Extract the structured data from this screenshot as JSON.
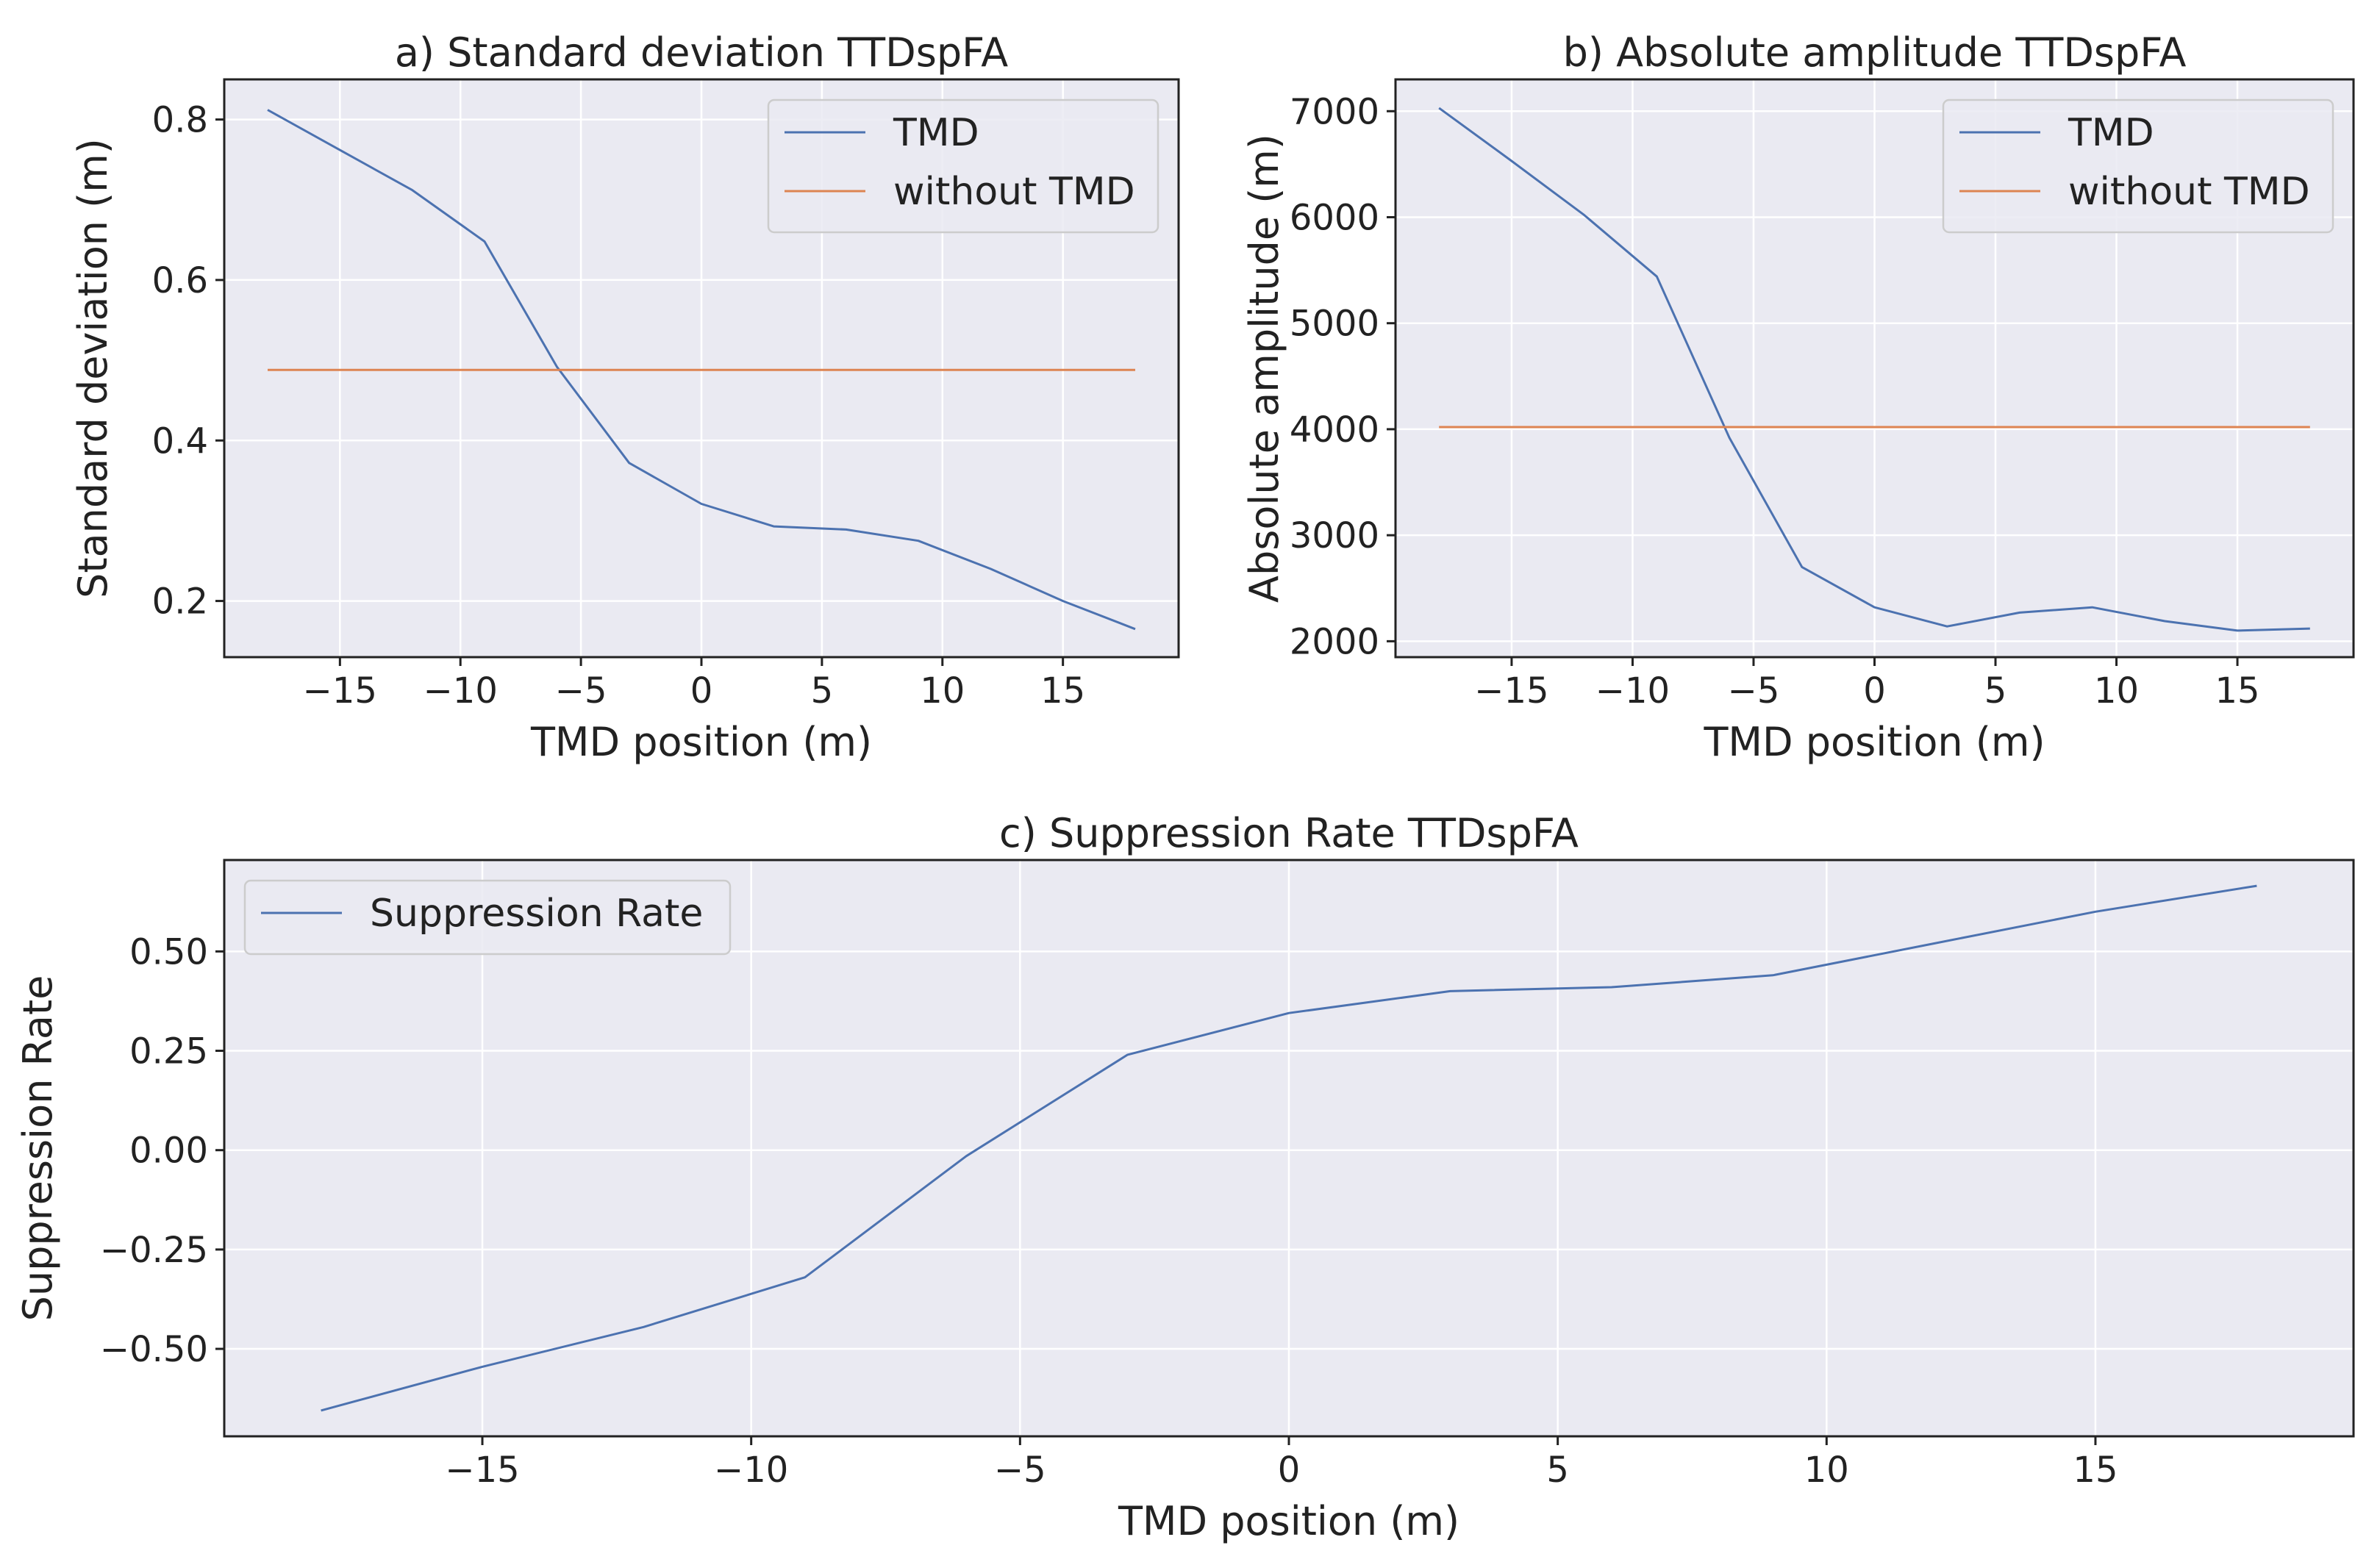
{
  "chart_data": [
    {
      "type": "line",
      "title": "a) Standard deviation TTDspFA",
      "xlabel": "TMD position (m)",
      "ylabel": "Standard deviation (m)",
      "xlim": [
        -19.8,
        19.8
      ],
      "ylim": [
        0.13,
        0.85
      ],
      "xticks": [
        -15,
        -10,
        -5,
        0,
        5,
        10,
        15
      ],
      "xtick_labels": [
        "−15",
        "−10",
        "−5",
        "0",
        "5",
        "10",
        "15"
      ],
      "yticks": [
        0.2,
        0.4,
        0.6,
        0.8
      ],
      "ytick_labels": [
        "0.2",
        "0.4",
        "0.6",
        "0.8"
      ],
      "grid": true,
      "legend": "top-right",
      "x": [
        -18,
        -15,
        -12,
        -9,
        -6,
        -3,
        0,
        3,
        6,
        9,
        12,
        15,
        18
      ],
      "series": [
        {
          "name": "TMD",
          "color": "#4c72b0",
          "values": [
            0.812,
            0.762,
            0.712,
            0.648,
            0.492,
            0.372,
            0.321,
            0.293,
            0.289,
            0.275,
            0.24,
            0.2,
            0.165
          ]
        },
        {
          "name": "without TMD",
          "color": "#dd8452",
          "values": [
            0.488,
            0.488,
            0.488,
            0.488,
            0.488,
            0.488,
            0.488,
            0.488,
            0.488,
            0.488,
            0.488,
            0.488,
            0.488
          ]
        }
      ]
    },
    {
      "type": "line",
      "title": "b) Absolute amplitude TTDspFA",
      "xlabel": "TMD position (m)",
      "ylabel": "Absolute amplitude (m)",
      "xlim": [
        -19.8,
        19.8
      ],
      "ylim": [
        1850,
        7300
      ],
      "xticks": [
        -15,
        -10,
        -5,
        0,
        5,
        10,
        15
      ],
      "xtick_labels": [
        "−15",
        "−10",
        "−5",
        "0",
        "5",
        "10",
        "15"
      ],
      "yticks": [
        2000,
        3000,
        4000,
        5000,
        6000,
        7000
      ],
      "ytick_labels": [
        "2000",
        "3000",
        "4000",
        "5000",
        "6000",
        "7000"
      ],
      "grid": true,
      "legend": "top-right",
      "x": [
        -18,
        -15,
        -12,
        -9,
        -6,
        -3,
        0,
        3,
        6,
        9,
        12,
        15,
        18
      ],
      "series": [
        {
          "name": "TMD",
          "color": "#4c72b0",
          "values": [
            7030,
            6530,
            6020,
            5440,
            3920,
            2700,
            2320,
            2140,
            2270,
            2320,
            2190,
            2100,
            2120
          ]
        },
        {
          "name": "without TMD",
          "color": "#dd8452",
          "values": [
            4020,
            4020,
            4020,
            4020,
            4020,
            4020,
            4020,
            4020,
            4020,
            4020,
            4020,
            4020,
            4020
          ]
        }
      ]
    },
    {
      "type": "line",
      "title": "c) Suppression Rate TTDspFA",
      "xlabel": "TMD position (m)",
      "ylabel": "Suppression Rate",
      "xlim": [
        -19.8,
        19.8
      ],
      "ylim": [
        -0.72,
        0.73
      ],
      "xticks": [
        -15,
        -10,
        -5,
        0,
        5,
        10,
        15
      ],
      "xtick_labels": [
        "−15",
        "−10",
        "−5",
        "0",
        "5",
        "10",
        "15"
      ],
      "yticks": [
        -0.5,
        -0.25,
        0.0,
        0.25,
        0.5
      ],
      "ytick_labels": [
        "−0.50",
        "−0.25",
        "0.00",
        "0.25",
        "0.50"
      ],
      "grid": true,
      "legend": "top-left",
      "x": [
        -18,
        -15,
        -12,
        -9,
        -6,
        -3,
        0,
        3,
        6,
        9,
        12,
        15,
        18
      ],
      "series": [
        {
          "name": "Suppression Rate",
          "color": "#4c72b0",
          "values": [
            -0.655,
            -0.545,
            -0.445,
            -0.32,
            -0.015,
            0.24,
            0.345,
            0.4,
            0.41,
            0.44,
            0.52,
            0.6,
            0.665
          ]
        }
      ]
    }
  ]
}
